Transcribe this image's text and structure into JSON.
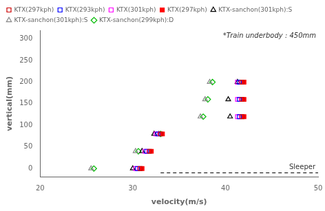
{
  "chart_data": {
    "type": "scatter",
    "xlabel": "velocity(m/s)",
    "ylabel": "vertical(mm)",
    "xlim": [
      20,
      50
    ],
    "ylim": [
      -20,
      320
    ],
    "xticks": [
      20,
      30,
      40,
      50
    ],
    "yticks": [
      0,
      50,
      100,
      150,
      200,
      250,
      300
    ],
    "grid": false,
    "legend": "upper left",
    "annotations": [
      {
        "text": "*Train underbody : 450mm",
        "position": "upper right"
      },
      {
        "text": "Sleeper",
        "x": 50,
        "y": -10
      }
    ],
    "series": [
      {
        "name": "KTX(297kph)",
        "color": "#cc0000",
        "marker": "square_open",
        "values": [
          [
            30.8,
            0
          ],
          [
            31.8,
            40
          ],
          [
            33.0,
            80
          ],
          [
            41.8,
            120
          ],
          [
            41.8,
            160
          ],
          [
            41.8,
            200
          ]
        ]
      },
      {
        "name": "KTX(293kph)",
        "color": "#0000ff",
        "marker": "square_open",
        "values": [
          [
            30.5,
            0
          ],
          [
            31.5,
            40
          ],
          [
            32.7,
            80
          ],
          [
            41.5,
            120
          ],
          [
            41.5,
            160
          ],
          [
            41.5,
            200
          ]
        ]
      },
      {
        "name": "KTX(301kph)",
        "color": "#ff00ff",
        "marker": "square_open",
        "values": [
          [
            30.3,
            0
          ],
          [
            31.3,
            40
          ],
          [
            32.5,
            80
          ],
          [
            41.3,
            120
          ],
          [
            41.3,
            160
          ],
          [
            41.3,
            200
          ]
        ]
      },
      {
        "name": "KTX(297kph)",
        "color": "#ff0000",
        "marker": "square_filled",
        "values": [
          [
            31.0,
            0
          ],
          [
            32.0,
            40
          ],
          [
            33.2,
            80
          ],
          [
            42.0,
            120
          ],
          [
            42.0,
            160
          ],
          [
            42.0,
            200
          ]
        ]
      },
      {
        "name": "KTX-sanchon(301kph):S",
        "color": "#000000",
        "marker": "triangle_open",
        "values": [
          [
            30.0,
            0
          ],
          [
            31.0,
            40
          ],
          [
            32.3,
            80
          ],
          [
            40.5,
            120
          ],
          [
            40.3,
            160
          ],
          [
            41.3,
            200
          ]
        ]
      },
      {
        "name": "KTX-sanchon(301kph):S",
        "color": "#888888",
        "marker": "triangle_open",
        "values": [
          [
            25.5,
            0
          ],
          [
            30.3,
            40
          ],
          [
            32.8,
            80
          ],
          [
            37.3,
            120
          ],
          [
            37.8,
            160
          ],
          [
            38.3,
            200
          ]
        ]
      },
      {
        "name": "KTX-sanchon(299kph):D",
        "color": "#00bb00",
        "marker": "diamond_open",
        "values": [
          [
            25.8,
            0
          ],
          [
            30.6,
            40
          ],
          [
            33.0,
            80
          ],
          [
            37.6,
            120
          ],
          [
            38.1,
            160
          ],
          [
            38.6,
            200
          ]
        ]
      },
      {
        "type": "line",
        "line_style": "dashed",
        "color": "#000000",
        "values": [
          [
            33,
            -10
          ],
          [
            50,
            -10
          ]
        ]
      }
    ]
  }
}
